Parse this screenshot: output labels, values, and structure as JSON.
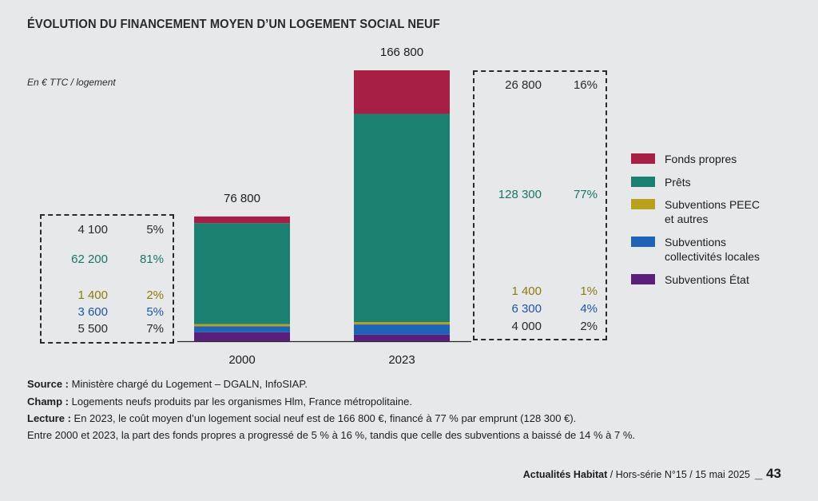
{
  "header": {
    "title": "ÉVOLUTION DU FINANCEMENT MOYEN D’UN LOGEMENT SOCIAL NEUF",
    "unit": "En € TTC / logement"
  },
  "chart_data": {
    "type": "bar",
    "stacked": true,
    "title": "ÉVOLUTION DU FINANCEMENT MOYEN D’UN LOGEMENT SOCIAL NEUF",
    "ylabel": "En € TTC / logement",
    "categories": [
      "2000",
      "2023"
    ],
    "totals": [
      "76 800",
      "166 800"
    ],
    "ylim": [
      0,
      166800
    ],
    "series": [
      {
        "name": "Subventions État",
        "color": "#5a1f7a",
        "values": [
          5500,
          4000
        ],
        "labels": [
          "5 500",
          "4 000"
        ],
        "pcts": [
          "7%",
          "2%"
        ]
      },
      {
        "name": "Subventions collectivités locales",
        "color": "#1e63b5",
        "values": [
          3600,
          6300
        ],
        "labels": [
          "3 600",
          "6 300"
        ],
        "pcts": [
          "5%",
          "4%"
        ]
      },
      {
        "name": "Subventions PEEC et autres",
        "color": "#b8a21d",
        "values": [
          1400,
          1400
        ],
        "labels": [
          "1 400",
          "1 400"
        ],
        "pcts": [
          "2%",
          "1%"
        ]
      },
      {
        "name": "Prêts",
        "color": "#1b8070",
        "values": [
          62200,
          128300
        ],
        "labels": [
          "62 200",
          "128 300"
        ],
        "pcts": [
          "81%",
          "77%"
        ]
      },
      {
        "name": "Fonds propres",
        "color": "#a81f45",
        "values": [
          4100,
          26800
        ],
        "labels": [
          "4 100",
          "26 800"
        ],
        "pcts": [
          "5%",
          "16%"
        ]
      }
    ],
    "legend": [
      {
        "label": "Fonds propres",
        "color": "#a81f45"
      },
      {
        "label": "Prêts",
        "color": "#1b8070"
      },
      {
        "label": "Subventions PEEC et autres",
        "color": "#b8a21d"
      },
      {
        "label": "Subventions collectivités locales",
        "color": "#1e63b5"
      },
      {
        "label": "Subventions État",
        "color": "#5a1f7a"
      }
    ]
  },
  "panels": {
    "left": [
      {
        "value": "4 100",
        "pct": "5%",
        "color": "#2a2a2a"
      },
      {
        "value": "62 200",
        "pct": "81%",
        "color": "#1b7565"
      },
      {
        "value": "1 400",
        "pct": "2%",
        "color": "#8a7c10"
      },
      {
        "value": "3 600",
        "pct": "5%",
        "color": "#1e56a0"
      },
      {
        "value": "5 500",
        "pct": "7%",
        "color": "#2a2a2a"
      }
    ],
    "right": [
      {
        "value": "26 800",
        "pct": "16%",
        "color": "#2a2a2a"
      },
      {
        "value": "128 300",
        "pct": "77%",
        "color": "#1b7565"
      },
      {
        "value": "1 400",
        "pct": "1%",
        "color": "#8a7c10"
      },
      {
        "value": "6 300",
        "pct": "4%",
        "color": "#1e56a0"
      },
      {
        "value": "4 000",
        "pct": "2%",
        "color": "#2a2a2a"
      }
    ]
  },
  "footer": {
    "source_label": "Source :",
    "source_text": " Ministère chargé du Logement – DGALN, InfoSIAP.",
    "champ_label": "Champ :",
    "champ_text": " Logements neufs produits par les organismes Hlm, France métropolitaine.",
    "lecture_label": "Lecture :",
    "lecture_text": " En 2023, le coût moyen d’un logement social neuf est de 166 800 €, financé à 77 % par emprunt (128 300 €).",
    "lecture_text2": "Entre 2000 et 2023, la part des fonds propres a progressé de 5 % à 16 %, tandis que celle des subventions a baissé de 14 % à 7 %."
  },
  "publication": {
    "name": "Actualités Habitat",
    "issue": " / Hors-série N°15 / 15 mai 2025",
    "page": "_ 43"
  }
}
